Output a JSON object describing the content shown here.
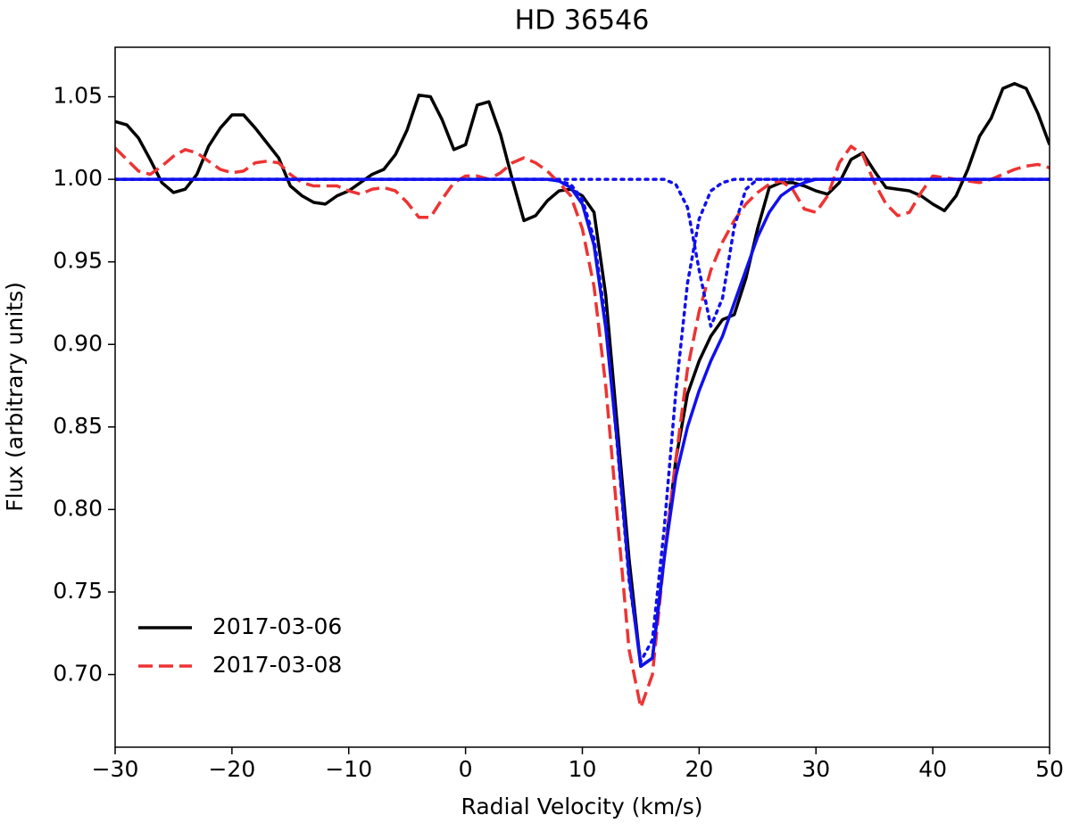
{
  "chart_data": {
    "type": "line",
    "title": "HD 36546",
    "xlabel": "Radial Velocity (km/s)",
    "ylabel": "Flux (arbitrary units)",
    "legend": "lower left",
    "xlim": [
      -30,
      50
    ],
    "ylim": [
      0.656,
      1.08
    ],
    "xticks": [
      {
        "value": -30,
        "label": "−30"
      },
      {
        "value": -20,
        "label": "−20"
      },
      {
        "value": -10,
        "label": "−10"
      },
      0,
      10,
      20,
      30,
      40,
      50
    ],
    "yticks": [
      {
        "value": 0.7,
        "label": "0.70"
      },
      0.75,
      {
        "value": 0.8,
        "label": "0.80"
      },
      0.85,
      {
        "value": 0.9,
        "label": "0.90"
      },
      0.95,
      {
        "value": 1.0,
        "label": "1.00"
      },
      1.05
    ],
    "x": [
      -30,
      -29,
      -28,
      -27,
      -26,
      -25,
      -24,
      -23,
      -22,
      -21,
      -20,
      -19,
      -18,
      -17,
      -16,
      -15,
      -14,
      -13,
      -12,
      -11,
      -10,
      -9,
      -8,
      -7,
      -6,
      -5,
      -4,
      -3,
      -2,
      -1,
      0,
      1,
      2,
      3,
      4,
      5,
      6,
      7,
      8,
      9,
      10,
      11,
      12,
      13,
      14,
      15,
      16,
      17,
      18,
      19,
      20,
      21,
      22,
      23,
      24,
      25,
      26,
      27,
      28,
      29,
      30,
      31,
      32,
      33,
      34,
      35,
      36,
      37,
      38,
      39,
      40,
      41,
      42,
      43,
      44,
      45,
      46,
      47,
      48,
      49,
      50
    ],
    "series": [
      {
        "name": "2017-03-06",
        "color": "#000000",
        "style": "solid",
        "values": [
          1.035,
          1.033,
          1.025,
          1.012,
          0.998,
          0.992,
          0.994,
          1.003,
          1.02,
          1.031,
          1.039,
          1.039,
          1.031,
          1.022,
          1.013,
          0.996,
          0.99,
          0.986,
          0.985,
          0.99,
          0.993,
          0.998,
          1.003,
          1.006,
          1.015,
          1.03,
          1.051,
          1.05,
          1.036,
          1.018,
          1.021,
          1.045,
          1.047,
          1.027,
          1.0,
          0.975,
          0.978,
          0.987,
          0.993,
          0.994,
          0.99,
          0.98,
          0.93,
          0.85,
          0.77,
          0.705,
          0.71,
          0.77,
          0.83,
          0.87,
          0.89,
          0.905,
          0.915,
          0.918,
          0.94,
          0.97,
          0.995,
          0.998,
          0.998,
          0.996,
          0.993,
          0.991,
          0.998,
          1.012,
          1.016,
          1.005,
          0.995,
          0.994,
          0.993,
          0.99,
          0.985,
          0.981,
          0.99,
          1.006,
          1.026,
          1.037,
          1.055,
          1.058,
          1.055,
          1.04,
          1.021
        ]
      },
      {
        "name": "2017-03-08",
        "color": "#ee3333",
        "style": "dashed",
        "values": [
          1.019,
          1.012,
          1.005,
          1.003,
          1.008,
          1.014,
          1.018,
          1.016,
          1.011,
          1.006,
          1.004,
          1.005,
          1.01,
          1.011,
          1.01,
          1.003,
          0.998,
          0.996,
          0.996,
          0.996,
          0.993,
          0.991,
          0.994,
          0.995,
          0.993,
          0.986,
          0.977,
          0.977,
          0.988,
          0.998,
          1.002,
          1.002,
          1.0,
          1.004,
          1.01,
          1.013,
          1.01,
          1.005,
          0.998,
          0.99,
          0.97,
          0.935,
          0.875,
          0.795,
          0.715,
          0.68,
          0.7,
          0.77,
          0.83,
          0.885,
          0.92,
          0.945,
          0.962,
          0.975,
          0.985,
          0.992,
          0.997,
          0.999,
          0.994,
          0.982,
          0.98,
          0.99,
          1.01,
          1.02,
          1.015,
          0.998,
          0.985,
          0.978,
          0.98,
          0.992,
          1.002,
          1.001,
          1.0,
          0.999,
          0.998,
          1.0,
          1.003,
          1.006,
          1.008,
          1.009,
          1.007
        ]
      },
      {
        "color": "#1010ee",
        "style": "dotted",
        "values": [
          1,
          1,
          1,
          1,
          1,
          1,
          1,
          1,
          1,
          1,
          1,
          1,
          1,
          1,
          1,
          1,
          1,
          1,
          1,
          1,
          1,
          1,
          1,
          1,
          1,
          1,
          1,
          1,
          1,
          1,
          1,
          1,
          1,
          1,
          1,
          1,
          1,
          1,
          0.999,
          0.997,
          0.988,
          0.964,
          0.914,
          0.838,
          0.757,
          0.708,
          0.721,
          0.788,
          0.871,
          0.937,
          0.976,
          0.993,
          0.998,
          1,
          1,
          1,
          1,
          1,
          1,
          1,
          1,
          1,
          1,
          1,
          1,
          1,
          1,
          1,
          1,
          1,
          1,
          1,
          1,
          1,
          1,
          1,
          1,
          1,
          1,
          1,
          1
        ]
      },
      {
        "color": "#1010ee",
        "style": "dotted",
        "values": [
          1,
          1,
          1,
          1,
          1,
          1,
          1,
          1,
          1,
          1,
          1,
          1,
          1,
          1,
          1,
          1,
          1,
          1,
          1,
          1,
          1,
          1,
          1,
          1,
          1,
          1,
          1,
          1,
          1,
          1,
          1,
          1,
          1,
          1,
          1,
          1,
          1,
          1,
          1,
          1,
          1,
          1,
          1,
          1,
          1,
          1,
          1,
          1,
          0.997,
          0.983,
          0.945,
          0.911,
          0.928,
          0.971,
          0.994,
          1,
          1,
          1,
          1,
          1,
          1,
          1,
          1,
          1,
          1,
          1,
          1,
          1,
          1,
          1,
          1,
          1,
          1,
          1,
          1,
          1,
          1,
          1,
          1,
          1,
          1
        ]
      },
      {
        "color": "#1010ee",
        "style": "solid",
        "values": [
          1,
          1,
          1,
          1,
          1,
          1,
          1,
          1,
          1,
          1,
          1,
          1,
          1,
          1,
          1,
          1,
          1,
          1,
          1,
          1,
          1,
          1,
          1,
          1,
          1,
          1,
          1,
          1,
          1,
          1,
          1,
          1,
          1,
          1,
          1,
          1,
          1,
          1,
          0.999,
          0.995,
          0.985,
          0.96,
          0.91,
          0.84,
          0.76,
          0.705,
          0.71,
          0.77,
          0.82,
          0.85,
          0.872,
          0.89,
          0.905,
          0.925,
          0.945,
          0.965,
          0.98,
          0.99,
          0.995,
          0.998,
          1,
          1,
          1,
          1,
          1,
          1,
          1,
          1,
          1,
          1,
          1,
          1,
          1,
          1,
          1,
          1,
          1,
          1,
          1,
          1,
          1
        ]
      }
    ]
  }
}
